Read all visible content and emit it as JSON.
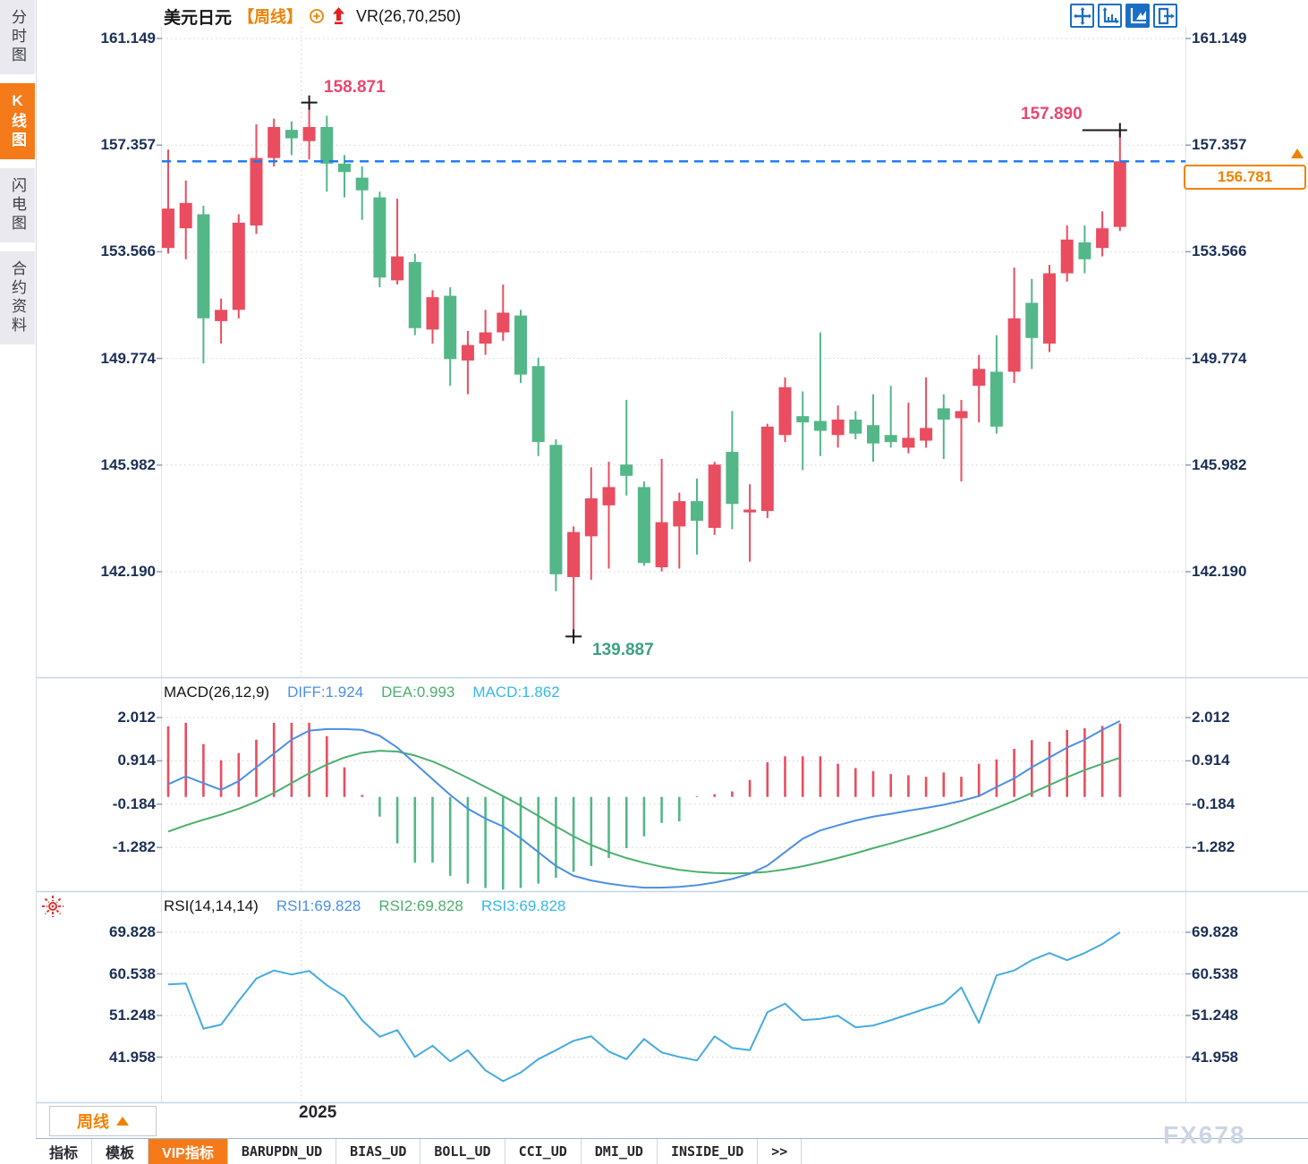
{
  "sidebar": {
    "tabs": [
      {
        "label": "分时图",
        "active": false
      },
      {
        "label": "K线图",
        "active": true
      },
      {
        "label": "闪电图",
        "active": false
      },
      {
        "label": "合约资料",
        "active": false
      }
    ]
  },
  "header": {
    "symbol": "美元日元",
    "period_tag": "【周线】",
    "indicator_label": "VR(26,70,250)"
  },
  "toolbar": {
    "icons": [
      {
        "name": "move-crosshair-icon",
        "active": false
      },
      {
        "name": "axis-scale-icon",
        "active": false
      },
      {
        "name": "chart-play-icon",
        "active": true
      },
      {
        "name": "exit-right-icon",
        "active": false
      }
    ]
  },
  "price_tag": {
    "value": "156.781"
  },
  "markers": {
    "high_label": "158.871",
    "low_label": "139.887",
    "recent_high_label": "157.890"
  },
  "macd_header": {
    "title": "MACD(26,12,9)",
    "diff_label": "DIFF:1.924",
    "dea_label": "DEA:0.993",
    "macd_label": "MACD:1.862"
  },
  "rsi_header": {
    "title": "RSI(14,14,14)",
    "rsi1_label": "RSI1:69.828",
    "rsi2_label": "RSI2:69.828",
    "rsi3_label": "RSI3:69.828"
  },
  "footer": {
    "period_box_label": "周线",
    "year_label": "2025",
    "tabs": [
      {
        "label": "指标",
        "cjk": true,
        "active": false
      },
      {
        "label": "模板",
        "cjk": true,
        "active": false
      },
      {
        "label": "VIP指标",
        "cjk": true,
        "active": true
      },
      {
        "label": "BARUPDN_UD",
        "cjk": false,
        "active": false
      },
      {
        "label": "BIAS_UD",
        "cjk": false,
        "active": false
      },
      {
        "label": "BOLL_UD",
        "cjk": false,
        "active": false
      },
      {
        "label": "CCI_UD",
        "cjk": false,
        "active": false
      },
      {
        "label": "DMI_UD",
        "cjk": false,
        "active": false
      },
      {
        "label": "INSIDE_UD",
        "cjk": false,
        "active": false
      },
      {
        "label": ">>",
        "cjk": false,
        "active": false
      }
    ],
    "watermark": "FX678"
  },
  "colors": {
    "up_red": "#e94d5f",
    "down_green": "#53b788",
    "diff_blue": "#4b8fe2",
    "dea_green": "#4caf6e",
    "macd_cyan": "#35b8e8",
    "rsi_blue": "#46abdf",
    "axis_text": "#1b2f55",
    "grid": "#d2d2da",
    "separator": "#c6d4e6",
    "dashed_price_blue": "#1877f2",
    "label_red": "#e8486e",
    "label_green": "#3ba183",
    "accent_orange": "#f57a1a",
    "icon_blue": "#1b6ec2",
    "cross_black": "#1a1a1a"
  },
  "chart_data": [
    {
      "type": "candlestick",
      "title": "美元日元 周线",
      "y_axis": {
        "labels": [
          161.149,
          157.357,
          153.566,
          149.774,
          145.982,
          142.19
        ],
        "range": [
          139.0,
          161.6
        ]
      },
      "x_axis": {
        "year_label": "2025",
        "year_line_index": 7.55
      },
      "current_price": 156.781,
      "legend_position": "top-left",
      "grid": true,
      "markers": {
        "high": {
          "index": 8,
          "price": 158.871
        },
        "low": {
          "index": 23,
          "price": 139.887
        },
        "recent_high": {
          "index": 54,
          "price": 157.89
        }
      },
      "candles": [
        [
          153.7,
          157.2,
          153.5,
          155.1
        ],
        [
          154.4,
          156.1,
          153.3,
          155.3
        ],
        [
          154.9,
          155.2,
          149.6,
          151.2
        ],
        [
          151.1,
          151.9,
          150.3,
          151.5
        ],
        [
          151.5,
          154.9,
          151.2,
          154.6
        ],
        [
          154.5,
          158.1,
          154.2,
          156.9
        ],
        [
          156.9,
          158.3,
          156.6,
          158.0
        ],
        [
          157.9,
          158.2,
          157.0,
          157.6
        ],
        [
          157.5,
          158.871,
          156.85,
          158.0
        ],
        [
          158.0,
          158.4,
          155.7,
          156.7
        ],
        [
          156.7,
          157.0,
          155.5,
          156.4
        ],
        [
          156.2,
          156.6,
          154.7,
          155.75
        ],
        [
          155.5,
          155.7,
          152.3,
          152.65
        ],
        [
          152.55,
          155.45,
          152.4,
          153.4
        ],
        [
          153.2,
          153.5,
          150.6,
          150.85
        ],
        [
          150.8,
          152.2,
          150.3,
          151.95
        ],
        [
          152.0,
          152.3,
          148.8,
          149.75
        ],
        [
          149.7,
          150.75,
          148.5,
          150.25
        ],
        [
          150.3,
          151.5,
          149.9,
          150.7
        ],
        [
          150.7,
          152.4,
          150.4,
          151.4
        ],
        [
          151.3,
          151.5,
          148.9,
          149.2
        ],
        [
          149.5,
          149.8,
          146.3,
          146.8
        ],
        [
          146.7,
          146.9,
          141.5,
          142.1
        ],
        [
          142.0,
          143.8,
          139.887,
          143.6
        ],
        [
          143.45,
          145.9,
          141.9,
          144.8
        ],
        [
          144.55,
          146.1,
          142.3,
          145.2
        ],
        [
          146.0,
          148.3,
          144.9,
          145.6
        ],
        [
          145.2,
          145.4,
          142.4,
          142.5
        ],
        [
          142.35,
          146.2,
          142.2,
          143.95
        ],
        [
          143.8,
          145.0,
          142.3,
          144.7
        ],
        [
          144.7,
          145.5,
          142.8,
          144.0
        ],
        [
          143.75,
          146.1,
          143.5,
          146.0
        ],
        [
          146.45,
          147.9,
          143.7,
          144.6
        ],
        [
          144.3,
          145.3,
          142.55,
          144.4
        ],
        [
          144.35,
          147.45,
          144.1,
          147.35
        ],
        [
          147.05,
          149.1,
          146.8,
          148.75
        ],
        [
          147.72,
          148.6,
          145.8,
          147.5
        ],
        [
          147.55,
          150.7,
          146.3,
          147.2
        ],
        [
          147.05,
          148.1,
          146.6,
          147.6
        ],
        [
          147.6,
          147.9,
          146.9,
          147.1
        ],
        [
          147.4,
          148.5,
          146.1,
          146.75
        ],
        [
          147.05,
          148.8,
          146.6,
          146.8
        ],
        [
          146.6,
          148.2,
          146.4,
          146.95
        ],
        [
          146.85,
          149.1,
          146.6,
          147.3
        ],
        [
          148.0,
          148.5,
          146.2,
          147.6
        ],
        [
          147.65,
          148.3,
          145.4,
          147.9
        ],
        [
          148.8,
          149.9,
          147.5,
          149.4
        ],
        [
          149.3,
          150.6,
          147.1,
          147.35
        ],
        [
          149.3,
          153.0,
          148.9,
          151.2
        ],
        [
          151.75,
          152.6,
          149.4,
          150.5
        ],
        [
          150.3,
          153.1,
          150.0,
          152.8
        ],
        [
          152.8,
          154.5,
          152.5,
          154.0
        ],
        [
          153.9,
          154.5,
          152.8,
          153.3
        ],
        [
          153.7,
          155.0,
          153.4,
          154.4
        ],
        [
          154.45,
          157.89,
          154.3,
          156.781
        ]
      ]
    },
    {
      "type": "bar",
      "name": "MACD",
      "params": [
        26,
        12,
        9
      ],
      "diff": 1.924,
      "dea": 0.993,
      "macd": 1.862,
      "y_axis": [
        2.012,
        0.914,
        -0.184,
        -1.282
      ],
      "series": {
        "hist": [
          1.79,
          1.88,
          1.34,
          0.93,
          1.11,
          1.45,
          1.88,
          1.88,
          1.88,
          1.54,
          0.75,
          0.05,
          -0.5,
          -1.18,
          -1.67,
          -1.67,
          -2.0,
          -2.2,
          -2.31,
          -2.35,
          -2.31,
          -2.2,
          -2.05,
          -1.9,
          -1.75,
          -1.55,
          -1.3,
          -1.0,
          -0.66,
          -0.62,
          0.02,
          0.07,
          0.14,
          0.43,
          0.88,
          1.03,
          1.03,
          1.03,
          0.84,
          0.73,
          0.65,
          0.58,
          0.55,
          0.51,
          0.62,
          0.51,
          0.84,
          0.95,
          1.22,
          1.44,
          1.4,
          1.7,
          1.74,
          1.8,
          1.862
        ],
        "diff_line": [
          0.32,
          0.52,
          0.35,
          0.18,
          0.4,
          0.75,
          1.1,
          1.45,
          1.68,
          1.72,
          1.72,
          1.7,
          1.55,
          1.25,
          0.85,
          0.45,
          0.05,
          -0.3,
          -0.55,
          -0.75,
          -1.05,
          -1.4,
          -1.75,
          -2.0,
          -2.12,
          -2.2,
          -2.26,
          -2.3,
          -2.3,
          -2.28,
          -2.24,
          -2.17,
          -2.08,
          -1.95,
          -1.74,
          -1.4,
          -1.06,
          -0.85,
          -0.72,
          -0.6,
          -0.5,
          -0.43,
          -0.35,
          -0.28,
          -0.2,
          -0.1,
          0.02,
          0.25,
          0.47,
          0.75,
          1.0,
          1.25,
          1.45,
          1.7,
          1.924
        ],
        "dea_line": [
          -0.88,
          -0.72,
          -0.58,
          -0.45,
          -0.3,
          -0.12,
          0.1,
          0.35,
          0.6,
          0.82,
          1.0,
          1.12,
          1.17,
          1.15,
          1.05,
          0.9,
          0.7,
          0.48,
          0.25,
          0.02,
          -0.22,
          -0.48,
          -0.75,
          -1.0,
          -1.22,
          -1.4,
          -1.55,
          -1.67,
          -1.77,
          -1.85,
          -1.9,
          -1.93,
          -1.94,
          -1.93,
          -1.9,
          -1.84,
          -1.76,
          -1.66,
          -1.55,
          -1.43,
          -1.3,
          -1.18,
          -1.05,
          -0.92,
          -0.78,
          -0.62,
          -0.45,
          -0.28,
          -0.1,
          0.1,
          0.3,
          0.5,
          0.68,
          0.84,
          0.993
        ]
      }
    },
    {
      "type": "line",
      "name": "RSI",
      "params": [
        14,
        14,
        14
      ],
      "y_axis": [
        69.828,
        60.538,
        51.248,
        41.958
      ],
      "values": [
        58.2,
        58.4,
        48.3,
        49.2,
        54.5,
        59.5,
        61.3,
        60.4,
        61.2,
        58.0,
        55.5,
        50.2,
        46.5,
        48.0,
        42.0,
        44.5,
        41.0,
        43.5,
        39.0,
        36.6,
        38.5,
        41.5,
        43.5,
        45.6,
        46.6,
        43.2,
        41.5,
        46.0,
        43.0,
        42.0,
        41.2,
        46.6,
        44.0,
        43.5,
        52.0,
        53.9,
        50.2,
        50.5,
        51.2,
        48.6,
        49.0,
        50.2,
        51.5,
        52.8,
        54.0,
        57.5,
        49.6,
        60.2,
        61.3,
        63.6,
        65.2,
        63.6,
        65.2,
        67.2,
        69.828
      ]
    }
  ]
}
